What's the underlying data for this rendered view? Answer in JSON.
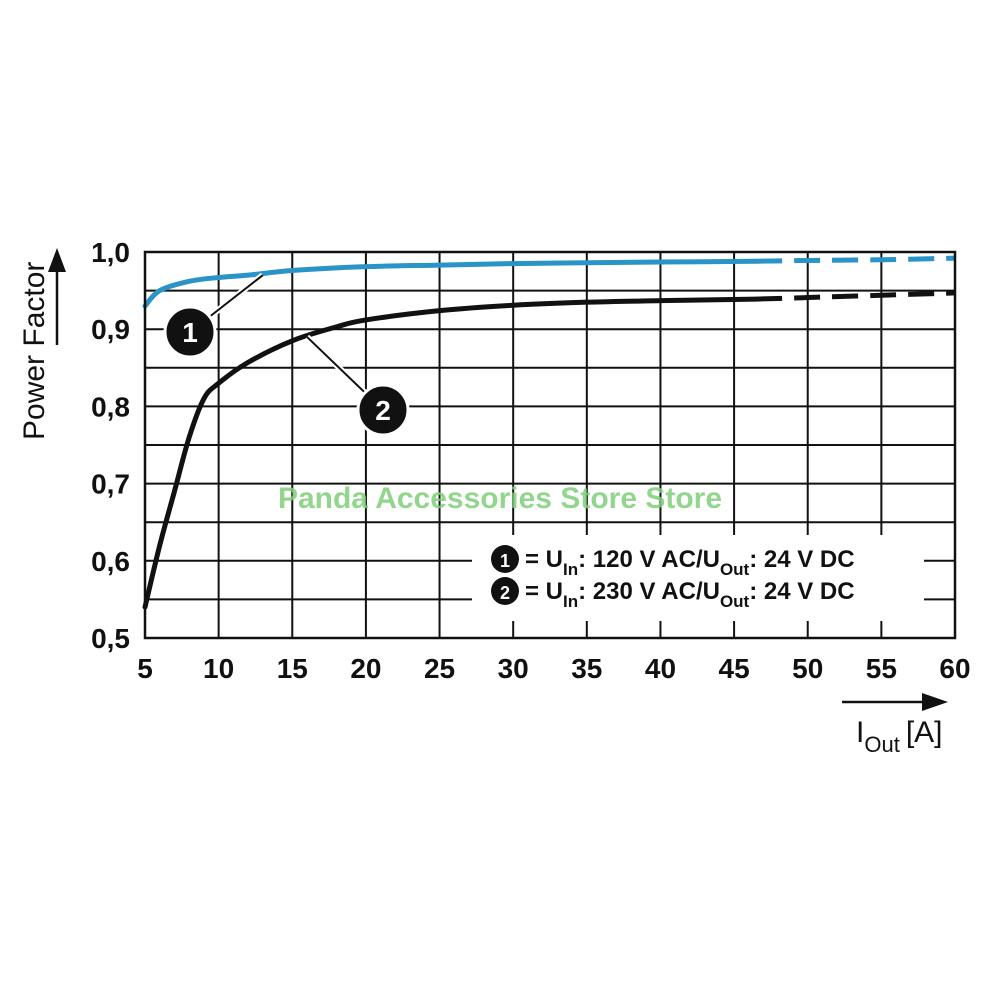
{
  "chart_data": {
    "type": "line",
    "xlabel": "I",
    "xlabel_sub": "Out",
    "xlabel_unit": "[A]",
    "ylabel": "Power Factor",
    "xlim": [
      5,
      60
    ],
    "ylim": [
      0.5,
      1.0
    ],
    "x_ticks": [
      "5",
      "10",
      "15",
      "20",
      "25",
      "30",
      "35",
      "40",
      "45",
      "50",
      "55",
      "60"
    ],
    "y_ticks": [
      "0,5",
      "0,6",
      "0,7",
      "0,8",
      "0,9",
      "1,0"
    ],
    "grid": true,
    "series": [
      {
        "marker": "1",
        "color": "#2a93c8",
        "solid": [
          [
            5,
            0.93
          ],
          [
            6,
            0.95
          ],
          [
            8,
            0.962
          ],
          [
            10,
            0.967
          ],
          [
            12,
            0.97
          ],
          [
            15,
            0.976
          ],
          [
            20,
            0.981
          ],
          [
            25,
            0.983
          ],
          [
            30,
            0.985
          ],
          [
            35,
            0.986
          ],
          [
            40,
            0.987
          ],
          [
            46.5,
            0.988
          ]
        ],
        "dashed": [
          [
            46.5,
            0.988
          ],
          [
            50,
            0.989
          ],
          [
            55,
            0.99
          ],
          [
            60,
            0.992
          ]
        ]
      },
      {
        "marker": "2",
        "color": "#111111",
        "solid": [
          [
            5,
            0.54
          ],
          [
            6,
            0.62
          ],
          [
            7,
            0.69
          ],
          [
            8,
            0.76
          ],
          [
            9,
            0.81
          ],
          [
            10,
            0.83
          ],
          [
            12,
            0.857
          ],
          [
            15,
            0.885
          ],
          [
            18,
            0.903
          ],
          [
            20,
            0.912
          ],
          [
            25,
            0.924
          ],
          [
            30,
            0.931
          ],
          [
            35,
            0.935
          ],
          [
            40,
            0.937
          ],
          [
            46.5,
            0.939
          ]
        ],
        "dashed": [
          [
            46.5,
            0.939
          ],
          [
            50,
            0.941
          ],
          [
            55,
            0.944
          ],
          [
            60,
            0.947
          ]
        ]
      }
    ],
    "legend": {
      "placement": "bottom-right",
      "entries": [
        {
          "marker": "1",
          "eq": "= U",
          "sub_in": "In",
          "mid": ": 120 V AC/U",
          "sub_out": "Out",
          "end": ": 24 V DC"
        },
        {
          "marker": "2",
          "eq": "= U",
          "sub_in": "In",
          "mid": ": 230 V AC/U",
          "sub_out": "Out",
          "end": ": 24 V DC"
        }
      ]
    },
    "callouts": [
      {
        "marker": "1",
        "x": 13,
        "y": 0.97
      },
      {
        "marker": "2",
        "x": 16,
        "y": 0.89
      }
    ]
  },
  "watermark": "Panda Accessories Store Store"
}
